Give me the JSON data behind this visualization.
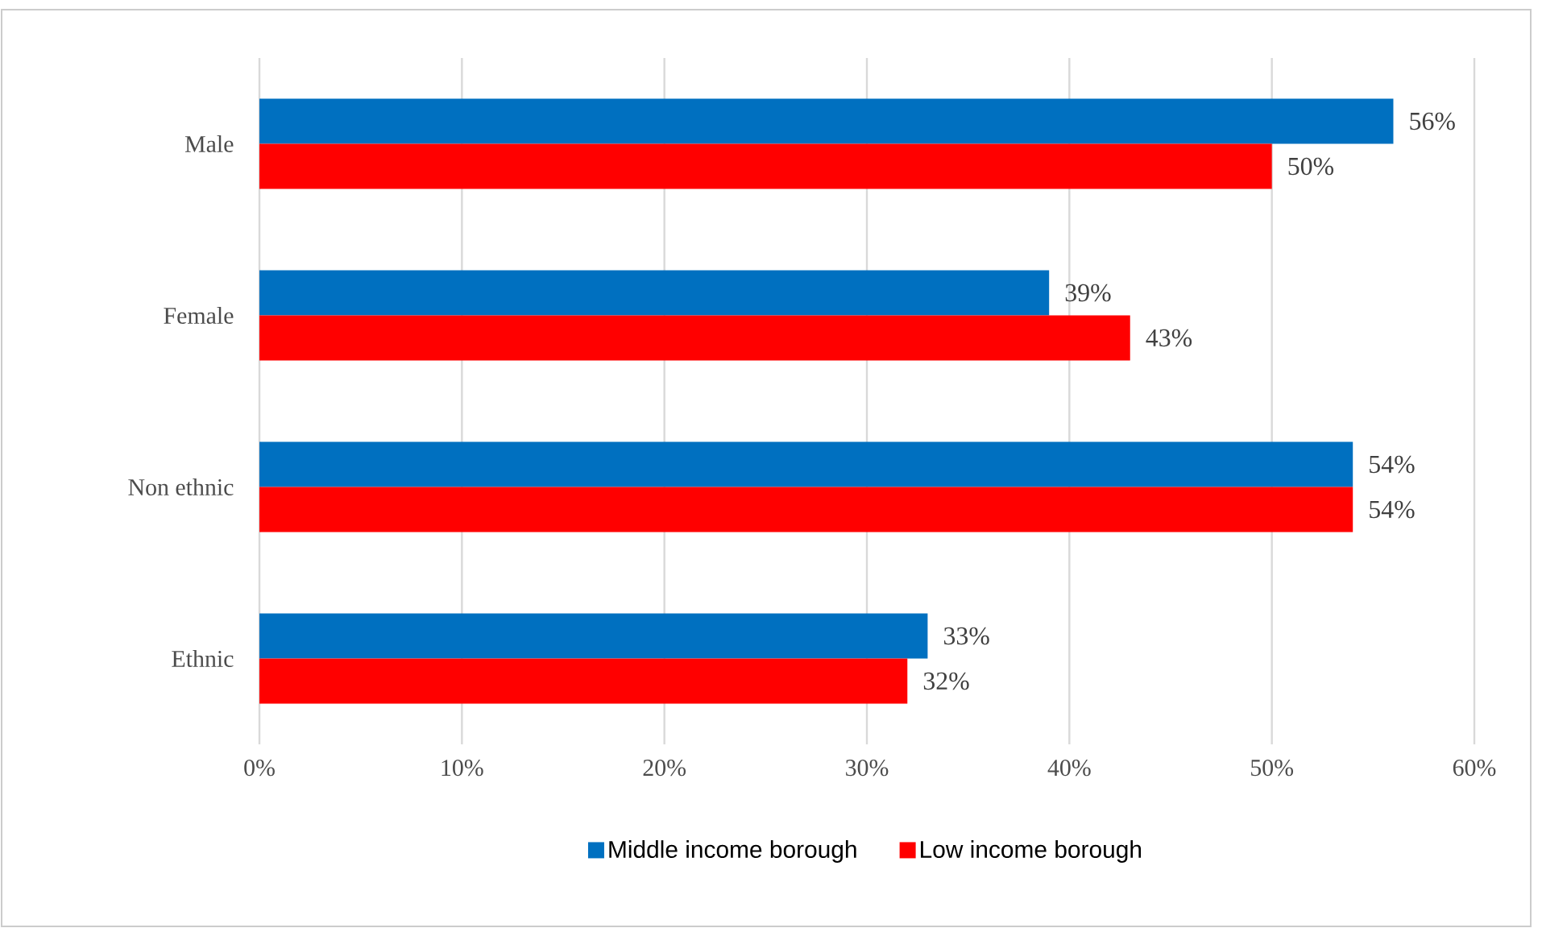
{
  "chart_data": {
    "type": "bar",
    "orientation": "horizontal",
    "categories": [
      "Male",
      "Female",
      "Non ethnic",
      "Ethnic"
    ],
    "series": [
      {
        "name": "Middle income borough",
        "color": "#0070c0",
        "values": [
          56,
          39,
          54,
          33
        ],
        "value_labels": [
          "56%",
          "39%",
          "54%",
          "33%"
        ]
      },
      {
        "name": "Low income borough",
        "color": "#ff0000",
        "values": [
          50,
          43,
          54,
          32
        ],
        "value_labels": [
          "50%",
          "43%",
          "54%",
          "32%"
        ]
      }
    ],
    "xlim": [
      0,
      60
    ],
    "xticks": [
      {
        "value": 0,
        "label": "0%"
      },
      {
        "value": 10,
        "label": "10%"
      },
      {
        "value": 20,
        "label": "20%"
      },
      {
        "value": 30,
        "label": "30%"
      },
      {
        "value": 40,
        "label": "40%"
      },
      {
        "value": 50,
        "label": "50%"
      },
      {
        "value": 60,
        "label": "60%"
      }
    ],
    "grid": "x",
    "legend": "bottom"
  }
}
